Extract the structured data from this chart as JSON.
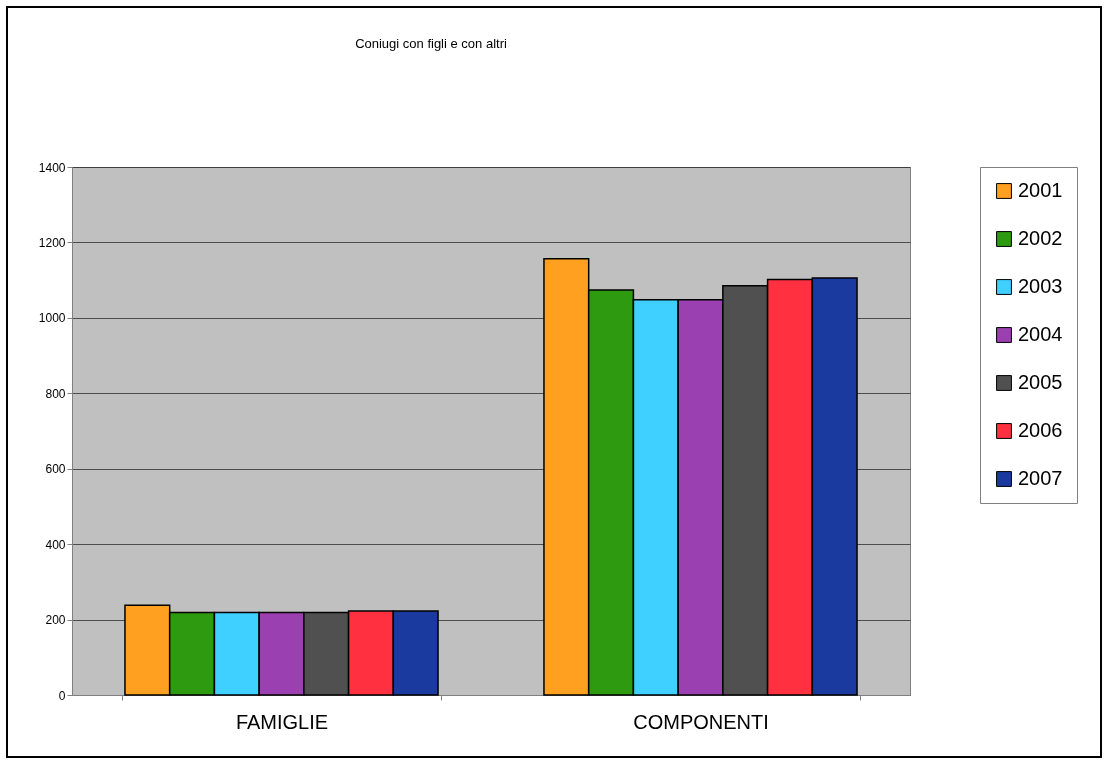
{
  "chart_data": {
    "type": "bar",
    "title": "Coniugi con figli e con altri",
    "categories": [
      "FAMIGLIE",
      "COMPONENTI"
    ],
    "series": [
      {
        "name": "2001",
        "color": "#ffa020",
        "values": [
          238,
          1157
        ]
      },
      {
        "name": "2002",
        "color": "#2e9a10",
        "values": [
          219,
          1074
        ]
      },
      {
        "name": "2003",
        "color": "#40d0ff",
        "values": [
          219,
          1048
        ]
      },
      {
        "name": "2004",
        "color": "#9a40b0",
        "values": [
          219,
          1048
        ]
      },
      {
        "name": "2005",
        "color": "#505050",
        "values": [
          219,
          1085
        ]
      },
      {
        "name": "2006",
        "color": "#ff3040",
        "values": [
          223,
          1102
        ]
      },
      {
        "name": "2007",
        "color": "#1a3aa0",
        "values": [
          223,
          1106
        ]
      }
    ],
    "ylim": [
      0,
      1400
    ],
    "yticks": [
      0,
      200,
      400,
      600,
      800,
      1000,
      1200,
      1400
    ],
    "grid": "y",
    "legend": "right"
  }
}
